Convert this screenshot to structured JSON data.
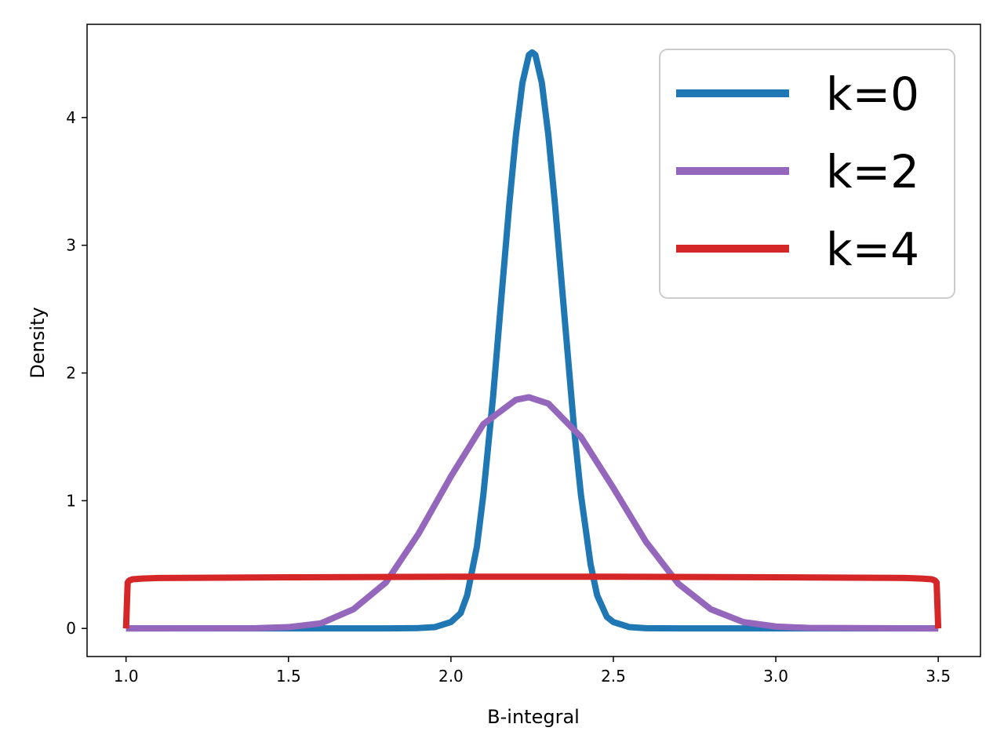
{
  "chart_data": {
    "type": "line",
    "xlabel": "B-integral",
    "ylabel": "Density",
    "xlim": [
      0.88,
      3.63
    ],
    "ylim": [
      -0.22,
      4.73
    ],
    "xticks": [
      1.0,
      1.5,
      2.0,
      2.5,
      3.0,
      3.5
    ],
    "xtick_labels": [
      "1.0",
      "1.5",
      "2.0",
      "2.5",
      "3.0",
      "3.5"
    ],
    "yticks": [
      0,
      1,
      2,
      3,
      4
    ],
    "ytick_labels": [
      "0",
      "1",
      "2",
      "3",
      "4"
    ],
    "grid": false,
    "legend_position": "top-right",
    "series": [
      {
        "name": "k=0",
        "color": "#1f77b4",
        "x": [
          1.0,
          1.8,
          1.9,
          1.95,
          2.0,
          2.03,
          2.05,
          2.08,
          2.1,
          2.13,
          2.15,
          2.18,
          2.2,
          2.22,
          2.24,
          2.25,
          2.26,
          2.28,
          2.3,
          2.32,
          2.35,
          2.38,
          2.4,
          2.43,
          2.45,
          2.48,
          2.5,
          2.55,
          2.6,
          2.7,
          3.5
        ],
        "y": [
          0,
          0,
          0.003,
          0.01,
          0.05,
          0.12,
          0.26,
          0.64,
          1.05,
          1.82,
          2.43,
          3.33,
          3.86,
          4.27,
          4.49,
          4.51,
          4.49,
          4.27,
          3.86,
          3.33,
          2.43,
          1.54,
          1.05,
          0.5,
          0.26,
          0.09,
          0.05,
          0.01,
          0.002,
          0,
          0
        ]
      },
      {
        "name": "k=2",
        "color": "#9467bd",
        "x": [
          1.0,
          1.4,
          1.5,
          1.6,
          1.7,
          1.8,
          1.9,
          2.0,
          2.1,
          2.2,
          2.24,
          2.3,
          2.4,
          2.5,
          2.6,
          2.7,
          2.8,
          2.9,
          3.0,
          3.1,
          3.5
        ],
        "y": [
          0,
          0.002,
          0.01,
          0.04,
          0.15,
          0.36,
          0.74,
          1.19,
          1.6,
          1.79,
          1.81,
          1.76,
          1.5,
          1.1,
          0.68,
          0.35,
          0.15,
          0.05,
          0.015,
          0.004,
          0
        ]
      },
      {
        "name": "k=4",
        "color": "#d62728",
        "x": [
          1.0,
          1.005,
          1.01,
          1.02,
          1.05,
          1.1,
          1.5,
          2.0,
          2.25,
          2.5,
          3.0,
          3.4,
          3.45,
          3.48,
          3.49,
          3.495,
          3.5
        ],
        "y": [
          0,
          0.36,
          0.375,
          0.385,
          0.39,
          0.395,
          0.4,
          0.405,
          0.405,
          0.405,
          0.4,
          0.395,
          0.39,
          0.385,
          0.375,
          0.36,
          0
        ]
      }
    ]
  }
}
